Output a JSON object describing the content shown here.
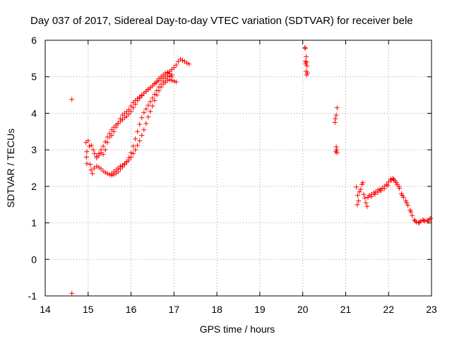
{
  "chart_data": {
    "type": "scatter",
    "title": "Day 037 of 2017, Sidereal Day-to-day VTEC variation (SDTVAR) for receiver bele",
    "xlabel": "GPS time / hours",
    "ylabel": "SDTVAR / TECUs",
    "xlim": [
      14,
      23
    ],
    "ylim": [
      -1,
      6
    ],
    "x_ticks": [
      14,
      15,
      16,
      17,
      18,
      19,
      20,
      21,
      22,
      23
    ],
    "y_ticks": [
      -1,
      0,
      1,
      2,
      3,
      4,
      5,
      6
    ],
    "x_tick_labels": [
      "14",
      "15",
      "16",
      "17",
      "18",
      "19",
      "20",
      "21",
      "22",
      "23"
    ],
    "y_tick_labels": [
      "-1",
      "0",
      "1",
      "2",
      "3",
      "4",
      "5",
      "6"
    ],
    "grid": true,
    "marker": "plus",
    "color": "#ff0000",
    "series": [
      {
        "name": "bele",
        "points": [
          [
            14.62,
            4.38
          ],
          [
            14.62,
            -0.93
          ],
          [
            14.95,
            3.2
          ],
          [
            14.97,
            2.95
          ],
          [
            14.96,
            2.8
          ],
          [
            14.97,
            2.62
          ],
          [
            15.0,
            3.25
          ],
          [
            15.03,
            3.1
          ],
          [
            15.05,
            2.6
          ],
          [
            15.07,
            2.45
          ],
          [
            15.1,
            2.35
          ],
          [
            15.08,
            3.12
          ],
          [
            15.12,
            3.0
          ],
          [
            15.14,
            2.5
          ],
          [
            15.15,
            2.9
          ],
          [
            15.2,
            2.78
          ],
          [
            15.25,
            2.85
          ],
          [
            15.3,
            2.92
          ],
          [
            15.35,
            2.88
          ],
          [
            15.4,
            3.0
          ],
          [
            15.45,
            3.2
          ],
          [
            15.5,
            3.35
          ],
          [
            15.55,
            3.4
          ],
          [
            15.6,
            3.5
          ],
          [
            15.65,
            3.62
          ],
          [
            15.7,
            3.72
          ],
          [
            15.75,
            3.85
          ],
          [
            15.8,
            3.95
          ],
          [
            15.85,
            4.0
          ],
          [
            15.9,
            4.05
          ],
          [
            15.95,
            4.1
          ],
          [
            16.0,
            4.2
          ],
          [
            16.05,
            4.3
          ],
          [
            16.1,
            4.35
          ],
          [
            16.15,
            4.4
          ],
          [
            16.2,
            4.45
          ],
          [
            16.25,
            4.5
          ],
          [
            16.3,
            4.55
          ],
          [
            16.35,
            4.6
          ],
          [
            16.4,
            4.66
          ],
          [
            16.45,
            4.7
          ],
          [
            16.5,
            4.75
          ],
          [
            16.55,
            4.8
          ],
          [
            16.6,
            4.85
          ],
          [
            16.65,
            4.9
          ],
          [
            16.7,
            4.95
          ],
          [
            16.75,
            5.0
          ],
          [
            16.8,
            5.05
          ],
          [
            16.85,
            5.1
          ],
          [
            16.9,
            5.15
          ],
          [
            16.95,
            5.2
          ],
          [
            17.0,
            5.25
          ],
          [
            17.05,
            5.32
          ],
          [
            17.1,
            5.42
          ],
          [
            17.15,
            5.48
          ],
          [
            17.2,
            5.45
          ],
          [
            17.25,
            5.42
          ],
          [
            17.3,
            5.38
          ],
          [
            17.35,
            5.35
          ],
          [
            15.2,
            2.55
          ],
          [
            15.25,
            2.52
          ],
          [
            15.3,
            2.48
          ],
          [
            15.35,
            2.42
          ],
          [
            15.4,
            2.38
          ],
          [
            15.45,
            2.35
          ],
          [
            15.5,
            2.32
          ],
          [
            15.55,
            2.35
          ],
          [
            15.6,
            2.4
          ],
          [
            15.65,
            2.45
          ],
          [
            15.7,
            2.5
          ],
          [
            15.75,
            2.55
          ],
          [
            15.8,
            2.58
          ],
          [
            15.85,
            2.62
          ],
          [
            15.9,
            2.66
          ],
          [
            15.95,
            2.72
          ],
          [
            16.0,
            2.8
          ],
          [
            16.05,
            2.9
          ],
          [
            16.1,
            3.0
          ],
          [
            16.15,
            3.12
          ],
          [
            16.2,
            3.25
          ],
          [
            16.25,
            3.4
          ],
          [
            16.3,
            3.55
          ],
          [
            16.35,
            3.72
          ],
          [
            16.4,
            3.9
          ],
          [
            16.45,
            4.05
          ],
          [
            16.5,
            4.2
          ],
          [
            16.55,
            4.35
          ],
          [
            16.6,
            4.5
          ],
          [
            16.65,
            4.62
          ],
          [
            16.7,
            4.72
          ],
          [
            16.75,
            4.8
          ],
          [
            16.8,
            4.85
          ],
          [
            16.85,
            4.9
          ],
          [
            16.9,
            4.92
          ],
          [
            16.95,
            4.9
          ],
          [
            17.0,
            4.88
          ],
          [
            17.05,
            4.86
          ],
          [
            15.2,
            2.82
          ],
          [
            15.25,
            2.9
          ],
          [
            15.3,
            3.0
          ],
          [
            15.35,
            3.1
          ],
          [
            15.4,
            3.22
          ],
          [
            15.45,
            3.35
          ],
          [
            15.5,
            3.45
          ],
          [
            15.55,
            3.55
          ],
          [
            15.6,
            3.62
          ],
          [
            15.65,
            3.68
          ],
          [
            15.7,
            3.72
          ],
          [
            15.75,
            3.78
          ],
          [
            15.8,
            3.82
          ],
          [
            15.85,
            3.88
          ],
          [
            15.9,
            3.92
          ],
          [
            15.95,
            3.98
          ],
          [
            16.0,
            4.05
          ],
          [
            16.05,
            4.15
          ],
          [
            16.1,
            4.25
          ],
          [
            16.15,
            4.35
          ],
          [
            16.2,
            4.42
          ],
          [
            16.25,
            4.48
          ],
          [
            16.3,
            4.55
          ],
          [
            16.35,
            4.6
          ],
          [
            16.4,
            4.65
          ],
          [
            16.45,
            4.7
          ],
          [
            16.5,
            4.75
          ],
          [
            16.55,
            4.82
          ],
          [
            16.6,
            4.88
          ],
          [
            16.65,
            4.95
          ],
          [
            16.7,
            5.0
          ],
          [
            16.75,
            5.05
          ],
          [
            16.8,
            5.1
          ],
          [
            16.85,
            5.12
          ],
          [
            16.9,
            5.08
          ],
          [
            16.95,
            5.05
          ],
          [
            15.55,
            2.3
          ],
          [
            15.6,
            2.32
          ],
          [
            15.65,
            2.36
          ],
          [
            15.7,
            2.4
          ],
          [
            15.75,
            2.47
          ],
          [
            15.8,
            2.53
          ],
          [
            15.85,
            2.6
          ],
          [
            15.9,
            2.68
          ],
          [
            15.95,
            2.78
          ],
          [
            16.0,
            2.92
          ],
          [
            16.05,
            3.1
          ],
          [
            16.1,
            3.3
          ],
          [
            16.15,
            3.5
          ],
          [
            16.2,
            3.7
          ],
          [
            16.25,
            3.88
          ],
          [
            16.3,
            4.02
          ],
          [
            16.35,
            4.12
          ],
          [
            16.4,
            4.22
          ],
          [
            16.45,
            4.32
          ],
          [
            16.5,
            4.42
          ],
          [
            16.55,
            4.52
          ],
          [
            16.6,
            4.62
          ],
          [
            16.65,
            4.72
          ],
          [
            16.7,
            4.8
          ],
          [
            16.75,
            4.88
          ],
          [
            16.8,
            4.95
          ],
          [
            16.85,
            5.0
          ],
          [
            16.9,
            5.02
          ],
          [
            16.95,
            5.0
          ],
          [
            20.05,
            5.8
          ],
          [
            20.06,
            5.78
          ],
          [
            20.08,
            5.55
          ],
          [
            20.06,
            5.42
          ],
          [
            20.09,
            5.4
          ],
          [
            20.07,
            5.35
          ],
          [
            20.1,
            5.3
          ],
          [
            20.08,
            5.15
          ],
          [
            20.11,
            5.1
          ],
          [
            20.09,
            5.05
          ],
          [
            20.75,
            3.75
          ],
          [
            20.76,
            3.85
          ],
          [
            20.78,
            3.95
          ],
          [
            20.8,
            4.15
          ],
          [
            20.77,
            2.95
          ],
          [
            20.79,
            3.0
          ],
          [
            20.78,
            3.08
          ],
          [
            20.8,
            2.92
          ],
          [
            21.25,
            1.98
          ],
          [
            21.28,
            1.75
          ],
          [
            21.3,
            1.6
          ],
          [
            21.27,
            1.5
          ],
          [
            21.32,
            1.85
          ],
          [
            21.35,
            1.92
          ],
          [
            21.38,
            2.05
          ],
          [
            21.4,
            2.1
          ],
          [
            21.42,
            1.78
          ],
          [
            21.45,
            1.68
          ],
          [
            21.47,
            1.55
          ],
          [
            21.5,
            1.45
          ],
          [
            21.52,
            1.7
          ],
          [
            21.55,
            1.75
          ],
          [
            21.6,
            1.78
          ],
          [
            21.65,
            1.82
          ],
          [
            21.7,
            1.85
          ],
          [
            21.75,
            1.9
          ],
          [
            21.8,
            1.92
          ],
          [
            21.85,
            1.95
          ],
          [
            21.9,
            2.0
          ],
          [
            21.95,
            2.05
          ],
          [
            22.0,
            2.12
          ],
          [
            22.05,
            2.2
          ],
          [
            22.1,
            2.22
          ],
          [
            22.15,
            2.15
          ],
          [
            22.2,
            2.05
          ],
          [
            22.25,
            1.95
          ],
          [
            22.3,
            1.8
          ],
          [
            22.35,
            1.7
          ],
          [
            22.4,
            1.6
          ],
          [
            22.45,
            1.48
          ],
          [
            22.5,
            1.35
          ],
          [
            22.55,
            1.2
          ],
          [
            22.6,
            1.08
          ],
          [
            22.65,
            1.02
          ],
          [
            22.7,
            1.0
          ],
          [
            22.75,
            1.05
          ],
          [
            22.8,
            1.08
          ],
          [
            22.85,
            1.05
          ],
          [
            22.9,
            1.07
          ],
          [
            22.95,
            1.1
          ],
          [
            22.98,
            1.12
          ],
          [
            21.6,
            1.72
          ],
          [
            21.68,
            1.78
          ],
          [
            21.75,
            1.84
          ],
          [
            21.82,
            1.88
          ],
          [
            21.9,
            1.94
          ],
          [
            21.98,
            2.02
          ],
          [
            22.06,
            2.16
          ],
          [
            22.12,
            2.18
          ],
          [
            22.18,
            2.1
          ],
          [
            22.24,
            2.0
          ],
          [
            22.32,
            1.75
          ],
          [
            22.42,
            1.55
          ],
          [
            22.52,
            1.3
          ],
          [
            22.62,
            1.05
          ],
          [
            22.72,
            1.02
          ],
          [
            22.82,
            1.06
          ],
          [
            22.92,
            1.04
          ]
        ]
      }
    ]
  }
}
